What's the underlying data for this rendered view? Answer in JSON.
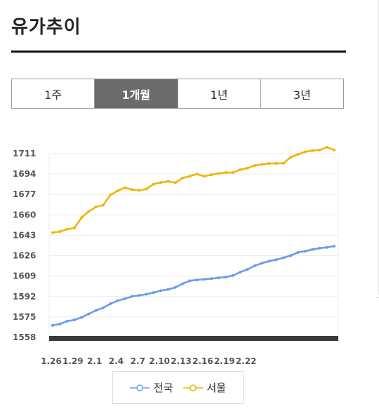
{
  "page": {
    "title": "유가추이"
  },
  "tabs": [
    {
      "label": "1주",
      "active": false
    },
    {
      "label": "1개월",
      "active": true
    },
    {
      "label": "1년",
      "active": false
    },
    {
      "label": "3년",
      "active": false
    }
  ],
  "colors": {
    "nationwide": "#6b9bf0",
    "seoul": "#f2b40c",
    "baseline": "#3a3a3a",
    "grid": "#ececec"
  },
  "chart_data": {
    "type": "line",
    "ylim": [
      1558,
      1711
    ],
    "yticks": [
      1711,
      1694,
      1677,
      1660,
      1643,
      1626,
      1609,
      1592,
      1575,
      1558
    ],
    "xtick_labels": [
      "1.26",
      "1.29",
      "2.1",
      "2.4",
      "2.7",
      "2.10",
      "2.13",
      "2.16",
      "2.19",
      "2.22"
    ],
    "grid": true,
    "legend_position": "bottom",
    "series": [
      {
        "name": "전국",
        "values": [
          1568.0,
          1569.1,
          1571.5,
          1572.5,
          1574.6,
          1577.5,
          1580.5,
          1582.6,
          1586.0,
          1588.5,
          1590.1,
          1592.1,
          1593.0,
          1593.9,
          1595.3,
          1596.9,
          1597.9,
          1599.6,
          1602.7,
          1605.1,
          1605.8,
          1606.4,
          1606.9,
          1607.6,
          1608.2,
          1609.5,
          1612.3,
          1614.6,
          1617.6,
          1619.7,
          1621.5,
          1622.7,
          1624.3,
          1626.2,
          1628.7,
          1629.7,
          1631.2,
          1632.3,
          1632.9,
          1633.9
        ]
      },
      {
        "name": "서울",
        "values": [
          1645.2,
          1646.1,
          1648.0,
          1649.0,
          1657.6,
          1662.8,
          1666.6,
          1668.1,
          1676.6,
          1680.0,
          1682.6,
          1681.0,
          1680.4,
          1681.5,
          1685.6,
          1687.0,
          1687.9,
          1686.8,
          1690.7,
          1692.2,
          1694.0,
          1692.1,
          1693.4,
          1694.5,
          1695.2,
          1695.2,
          1697.6,
          1698.9,
          1701.0,
          1702.0,
          1702.8,
          1702.8,
          1703.0,
          1708.1,
          1710.4,
          1712.5,
          1713.5,
          1714.0,
          1716.3,
          1714.0
        ]
      }
    ]
  }
}
